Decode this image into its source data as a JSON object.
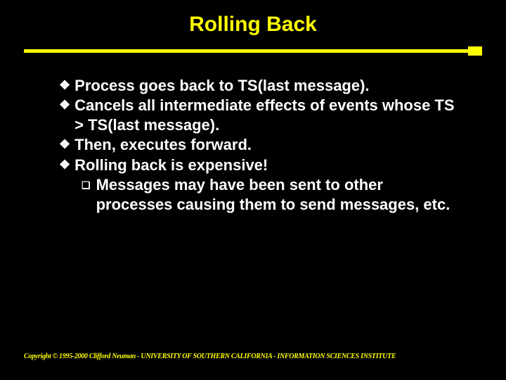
{
  "slide": {
    "title": "Rolling Back",
    "bullets": [
      {
        "level": 1,
        "text": "Process goes back to TS(last message)."
      },
      {
        "level": 1,
        "text": "Cancels all intermediate effects of events whose TS > TS(last message)."
      },
      {
        "level": 1,
        "text": "Then, executes forward."
      },
      {
        "level": 1,
        "text": "Rolling back is expensive!"
      },
      {
        "level": 2,
        "text": "Messages may have been sent to other processes causing them to send messages, etc."
      }
    ],
    "footer": "Copyright © 1995-2000 Clifford Neuman - UNIVERSITY OF SOUTHERN CALIFORNIA - INFORMATION SCIENCES INSTITUTE",
    "colors": {
      "background": "#000000",
      "title": "#ffff00",
      "divider": "#ffff00",
      "body_text": "#ffffff",
      "footer": "#ffff00"
    },
    "typography": {
      "title_fontsize": 30,
      "body_fontsize": 22,
      "footer_fontsize": 10,
      "title_weight": "bold",
      "body_weight": "bold",
      "footer_style": "italic"
    },
    "markers": {
      "level1": "❖",
      "level2": "❑"
    }
  }
}
